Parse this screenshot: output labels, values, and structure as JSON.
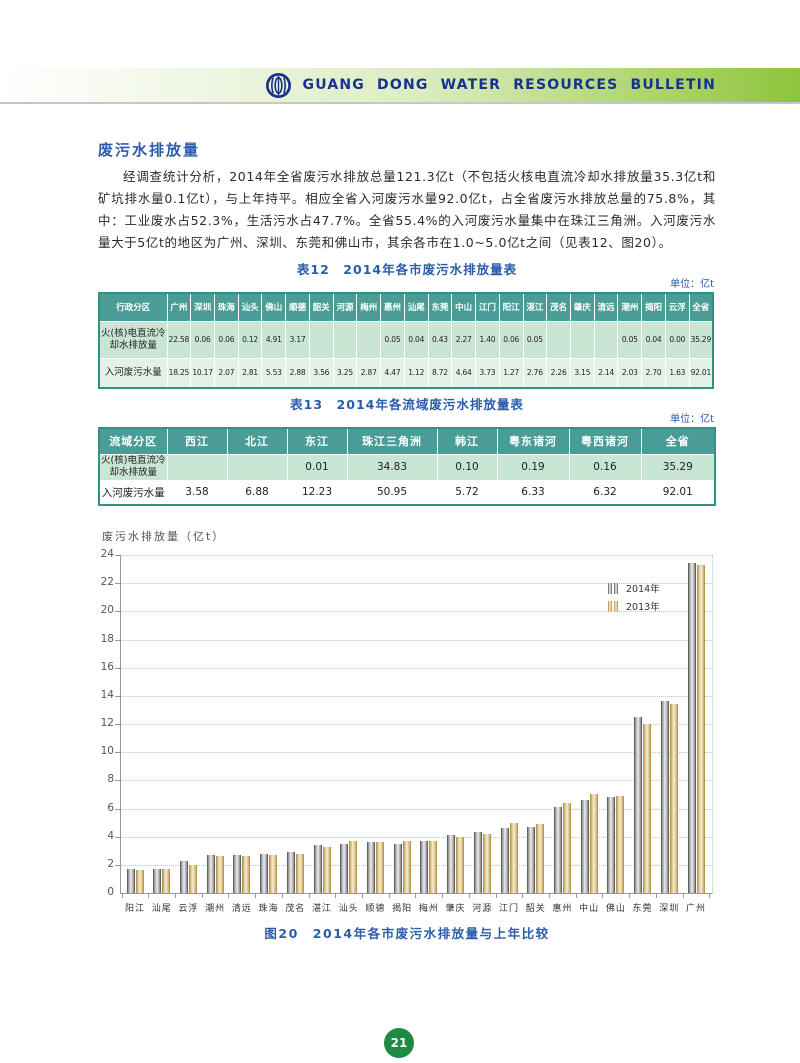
{
  "header": {
    "banner_title": "GUANG DONG WATER RESOURCES BULLETIN",
    "logo": "water-resources-emblem"
  },
  "colors": {
    "accent_blue": "#2b5cab",
    "banner_green": "#8dc43c",
    "banner_text_blue": "#15328c",
    "table_header_teal": "#4a9d96",
    "table_row1_green": "#c9e6d4",
    "table_row2_green": "#e3f2e9",
    "page_badge_green": "#1e8b44",
    "bar_2014_gray": "#454545",
    "bar_2013_tan": "#b3913f"
  },
  "article": {
    "section_title": "废污水排放量",
    "paragraph": "经调查统计分析，2014年全省废污水排放总量121.3亿t（不包括火核电直流冷却水排放量35.3亿t和矿坑排水量0.1亿t），与上年持平。相应全省入河废污水量92.0亿t，占全省废污水排放总量的75.8%，其中：工业废水占52.3%，生活污水占47.7%。全省55.4%的入河废污水量集中在珠江三角洲。入河废污水量大于5亿t的地区为广州、深圳、东莞和佛山市，其余各市在1.0~5.0亿t之间（见表12、图20）。"
  },
  "table12": {
    "caption": "表12　2014年各市废污水排放量表",
    "unit": "单位：亿t",
    "columns": [
      "行政分区",
      "广州",
      "深圳",
      "珠海",
      "汕头",
      "佛山",
      "顺德",
      "韶关",
      "河源",
      "梅州",
      "惠州",
      "汕尾",
      "东莞",
      "中山",
      "江门",
      "阳江",
      "湛江",
      "茂名",
      "肇庆",
      "清远",
      "潮州",
      "揭阳",
      "云浮",
      "全省"
    ],
    "rows": [
      {
        "label": "火(核)电直流冷却水排放量",
        "values": [
          "22.58",
          "0.06",
          "0.06",
          "0.12",
          "4.91",
          "3.17",
          "",
          "",
          "",
          "0.05",
          "0.04",
          "0.43",
          "2.27",
          "1.40",
          "0.06",
          "0.05",
          "",
          "",
          "",
          "0.05",
          "0.04",
          "0.00",
          "35.29"
        ]
      },
      {
        "label": "入河废污水量",
        "values": [
          "18.25",
          "10.17",
          "2.07",
          "2.81",
          "5.53",
          "2.88",
          "3.56",
          "3.25",
          "2.87",
          "4.47",
          "1.12",
          "8.72",
          "4.64",
          "3.73",
          "1.27",
          "2.76",
          "2.26",
          "3.15",
          "2.14",
          "2.03",
          "2.70",
          "1.63",
          "92.01"
        ]
      }
    ]
  },
  "table13": {
    "caption": "表13　2014年各流域废污水排放量表",
    "unit": "单位：亿t",
    "columns": [
      "流域分区",
      "西江",
      "北江",
      "东江",
      "珠江三角洲",
      "韩江",
      "粤东诸河",
      "粤西诸河",
      "全省"
    ],
    "rows": [
      {
        "label": "火(核)电直流冷却水排放量",
        "values": [
          "",
          "",
          "0.01",
          "34.83",
          "0.10",
          "0.19",
          "0.16",
          "35.29"
        ]
      },
      {
        "label": "入河废污水量",
        "values": [
          "3.58",
          "6.88",
          "12.23",
          "50.95",
          "5.72",
          "6.33",
          "6.32",
          "92.01"
        ]
      }
    ]
  },
  "chart_data": {
    "type": "bar",
    "title": "图20　2014年各市废污水排放量与上年比较",
    "ylabel": "废污水排放量（亿t）",
    "xlabel": "",
    "ylim": [
      0,
      24
    ],
    "ytick_step": 2,
    "grid": "dotted-horizontal",
    "legend_position": "upper-right-inside",
    "categories": [
      "阳江",
      "汕尾",
      "云浮",
      "潮州",
      "清远",
      "珠海",
      "茂名",
      "湛江",
      "汕头",
      "顺德",
      "揭阳",
      "梅州",
      "肇庆",
      "河源",
      "江门",
      "韶关",
      "惠州",
      "中山",
      "佛山",
      "东莞",
      "深圳",
      "广州"
    ],
    "series": [
      {
        "name": "2014年",
        "color": "#454545",
        "values": [
          1.7,
          1.7,
          2.3,
          2.7,
          2.7,
          2.8,
          2.9,
          3.4,
          3.5,
          3.6,
          3.5,
          3.7,
          4.1,
          4.3,
          4.6,
          4.7,
          6.1,
          6.6,
          6.8,
          12.5,
          13.6,
          23.4
        ]
      },
      {
        "name": "2013年",
        "color": "#b3913f",
        "values": [
          1.6,
          1.7,
          2.0,
          2.6,
          2.6,
          2.7,
          2.8,
          3.3,
          3.7,
          3.6,
          3.7,
          3.7,
          4.0,
          4.2,
          5.0,
          4.9,
          6.4,
          7.0,
          6.9,
          12.0,
          13.4,
          23.3
        ]
      }
    ]
  },
  "page_number": "21"
}
